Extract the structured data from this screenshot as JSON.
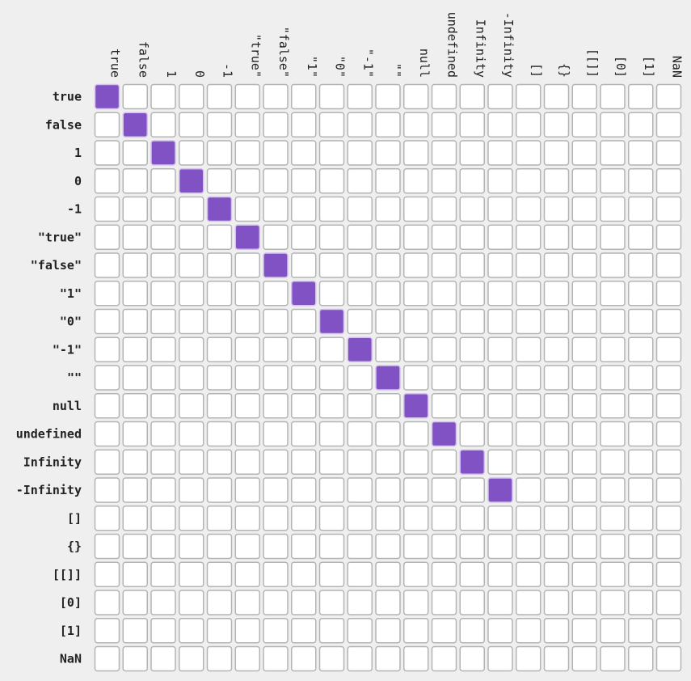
{
  "chart_data": {
    "type": "heatmap",
    "title": "",
    "xlabel": "",
    "ylabel": "",
    "grid": true,
    "legend": "none",
    "columns": [
      "true",
      "false",
      "1",
      "0",
      "-1",
      "\"true\"",
      "\"false\"",
      "\"1\"",
      "\"0\"",
      "\"-1\"",
      "\"\"",
      "null",
      "undefined",
      "Infinity",
      "-Infinity",
      "[]",
      "{}",
      "[[]]",
      "[0]",
      "[1]",
      "NaN"
    ],
    "rows": [
      "true",
      "false",
      "1",
      "0",
      "-1",
      "\"true\"",
      "\"false\"",
      "\"1\"",
      "\"0\"",
      "\"-1\"",
      "\"\"",
      "null",
      "undefined",
      "Infinity",
      "-Infinity",
      "[]",
      "{}",
      "[[]]",
      "[0]",
      "[1]",
      "NaN"
    ],
    "true_cells": [
      [
        0,
        0
      ],
      [
        1,
        1
      ],
      [
        2,
        2
      ],
      [
        3,
        3
      ],
      [
        4,
        4
      ],
      [
        5,
        5
      ],
      [
        6,
        6
      ],
      [
        7,
        7
      ],
      [
        8,
        8
      ],
      [
        9,
        9
      ],
      [
        10,
        10
      ],
      [
        11,
        11
      ],
      [
        12,
        12
      ],
      [
        13,
        13
      ],
      [
        14,
        14
      ]
    ],
    "colors": {
      "true": "#8152c4",
      "false": "#ffffff",
      "cell_border": "#b4b4b4",
      "background": "#efefef"
    }
  }
}
